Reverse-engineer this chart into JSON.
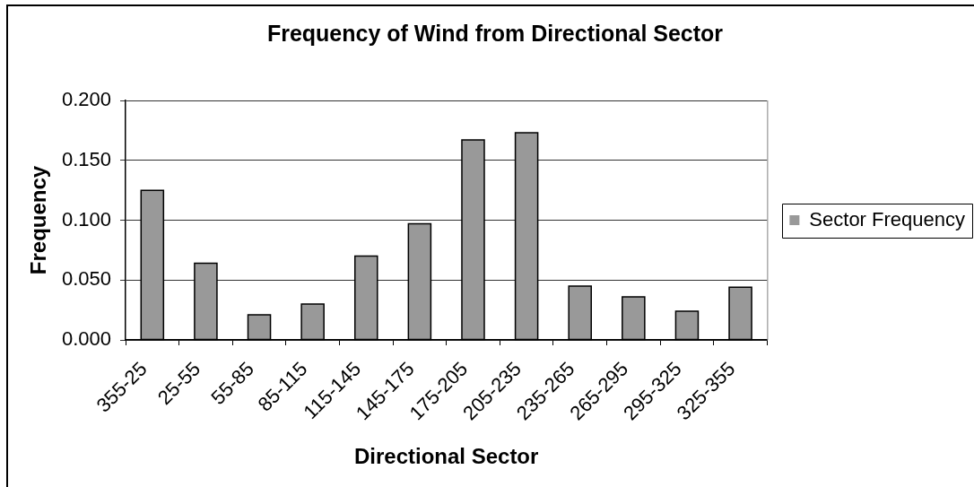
{
  "chart_data": {
    "type": "bar",
    "title": "Frequency of Wind from Directional Sector",
    "xlabel": "Directional Sector",
    "ylabel": "Frequency",
    "categories": [
      "355-25",
      "25-55",
      "55-85",
      "85-115",
      "115-145",
      "145-175",
      "175-205",
      "205-235",
      "235-265",
      "265-295",
      "295-325",
      "325-355"
    ],
    "series": [
      {
        "name": "Sector Frequency",
        "color": "#999999",
        "values": [
          0.125,
          0.064,
          0.021,
          0.03,
          0.07,
          0.097,
          0.167,
          0.173,
          0.045,
          0.036,
          0.024,
          0.044
        ]
      }
    ],
    "ylim": [
      0,
      0.2
    ],
    "yticks": [
      {
        "value": 0,
        "label": "0.000"
      },
      {
        "value": 0.05,
        "label": "0.050"
      },
      {
        "value": 0.1,
        "label": "0.100"
      },
      {
        "value": 0.15,
        "label": "0.150"
      },
      {
        "value": 0.2,
        "label": "0.200"
      }
    ],
    "grid": "y",
    "legend": "right"
  }
}
